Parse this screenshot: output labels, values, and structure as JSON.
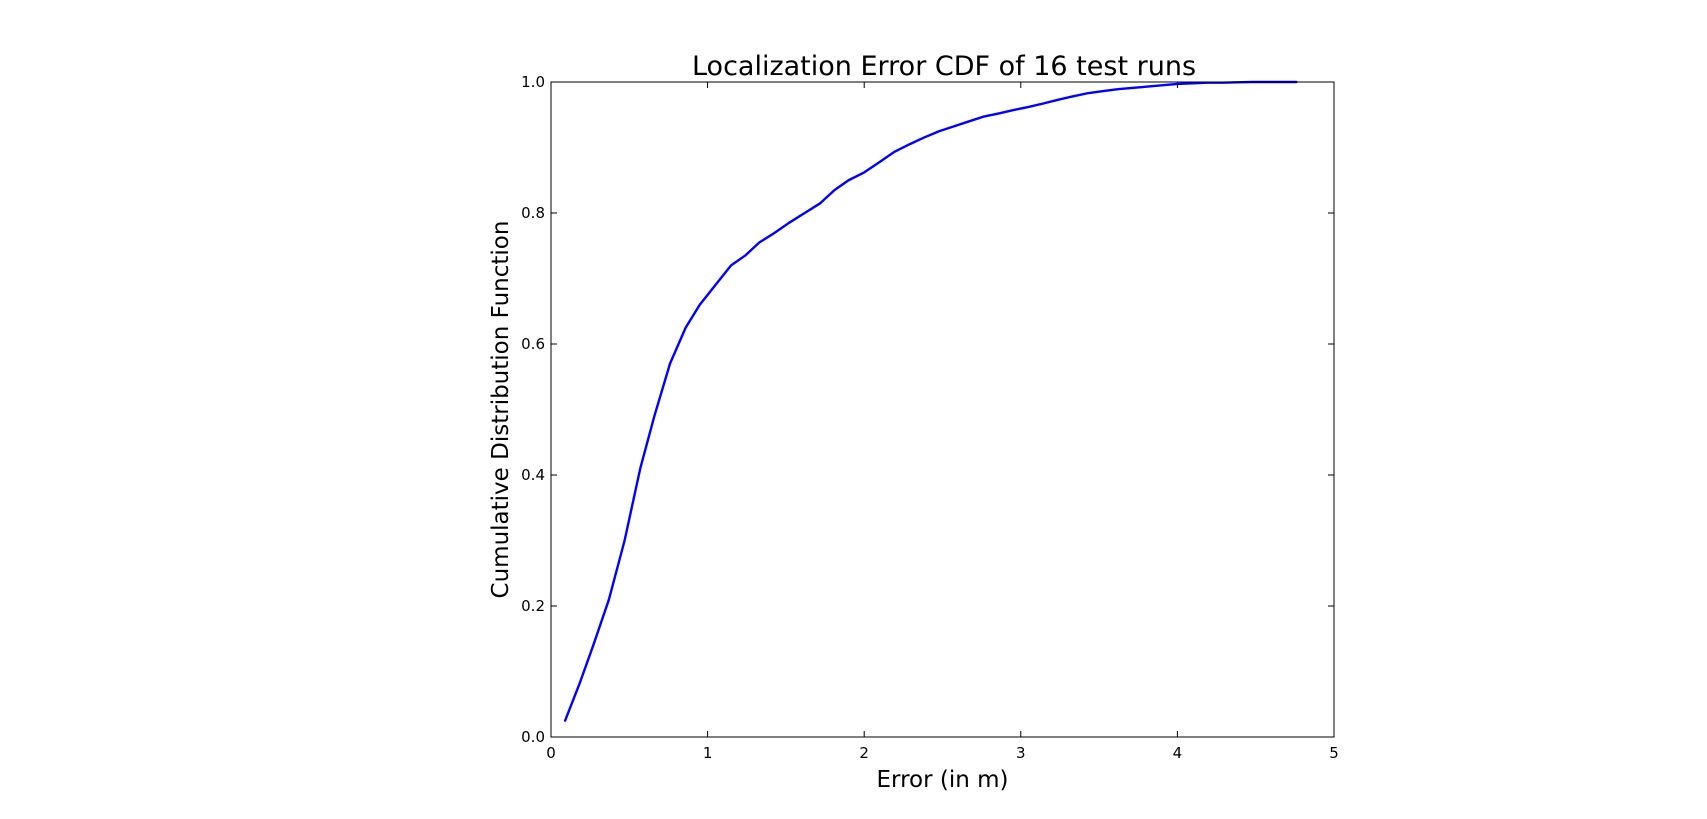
{
  "chart_data": {
    "type": "line",
    "title": "Localization Error CDF of 16 test runs",
    "xlabel": "Error (in m)",
    "ylabel": "Cumulative Distribution Function",
    "xlim": [
      0,
      5
    ],
    "ylim": [
      0.0,
      1.0
    ],
    "xticks": [
      0,
      1,
      2,
      3,
      4,
      5
    ],
    "xtick_labels": [
      "0",
      "1",
      "2",
      "3",
      "4",
      "5"
    ],
    "yticks": [
      0.0,
      0.2,
      0.4,
      0.6,
      0.8,
      1.0
    ],
    "ytick_labels": [
      "0.0",
      "0.2",
      "0.4",
      "0.6",
      "0.8",
      "1.0"
    ],
    "grid": false,
    "legend": false,
    "series": [
      {
        "color": "#0000ff",
        "x": [
          0.09,
          0.18,
          0.27,
          0.37,
          0.47,
          0.57,
          0.66,
          0.76,
          0.86,
          0.95,
          1.05,
          1.15,
          1.24,
          1.33,
          1.43,
          1.52,
          1.62,
          1.72,
          1.81,
          1.9,
          2.0,
          2.1,
          2.19,
          2.29,
          2.38,
          2.48,
          2.57,
          2.67,
          2.76,
          2.86,
          2.95,
          3.05,
          3.14,
          3.24,
          3.33,
          3.43,
          3.52,
          3.62,
          3.71,
          3.81,
          3.9,
          4.0,
          4.1,
          4.19,
          4.29,
          4.38,
          4.48,
          4.57,
          4.67,
          4.76
        ],
        "y": [
          0.025,
          0.08,
          0.14,
          0.21,
          0.3,
          0.41,
          0.49,
          0.57,
          0.625,
          0.66,
          0.69,
          0.72,
          0.735,
          0.755,
          0.77,
          0.785,
          0.8,
          0.815,
          0.835,
          0.85,
          0.862,
          0.878,
          0.893,
          0.905,
          0.915,
          0.925,
          0.932,
          0.94,
          0.947,
          0.952,
          0.957,
          0.962,
          0.967,
          0.973,
          0.978,
          0.983,
          0.986,
          0.989,
          0.991,
          0.993,
          0.995,
          0.997,
          0.998,
          0.999,
          0.999,
          0.9995,
          1.0,
          1.0,
          1.0,
          1.0
        ]
      }
    ]
  }
}
